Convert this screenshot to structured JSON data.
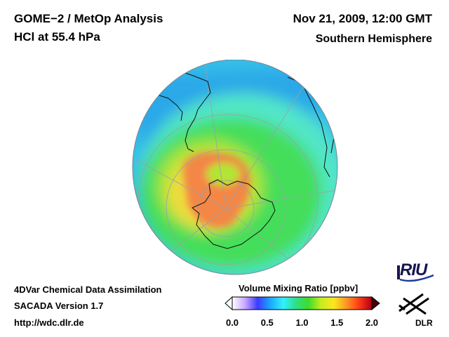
{
  "header": {
    "title": "GOME−2 / MetOp Analysis",
    "quantity": "HCl at 55.4 hPa",
    "datetime": "Nov 21, 2009, 12:00 GMT",
    "region": "Southern Hemisphere"
  },
  "footer": {
    "line1": "4DVar Chemical Data Assimilation",
    "line2": "SACADA Version 1.7",
    "line3": "http://wdc.dlr.de"
  },
  "colorbar": {
    "title": "Volume Mixing Ratio [ppbv]",
    "ticks": [
      "0.0",
      "0.5",
      "1.0",
      "1.5",
      "2.0"
    ],
    "range": [
      0.0,
      2.0
    ],
    "colors": [
      "#ffffff",
      "#c8a8ff",
      "#3a3cff",
      "#1aa8ff",
      "#33f0ff",
      "#2ee08a",
      "#3ddc2a",
      "#c8ec20",
      "#f8e81e",
      "#ff9624",
      "#ff3a18",
      "#b00010"
    ]
  },
  "logos": {
    "riu": "RIU",
    "dlr": "DLR"
  },
  "map": {
    "projection": "orthographic, centered on the South Pole",
    "colors": {
      "background": "#35bfe8",
      "midlat_blue": "#2ba8e8",
      "band_cyan": "#52e6c8",
      "green": "#45de5a",
      "yellow_green": "#b4e436",
      "yellow": "#f0dc3c",
      "orange_red": "#f47848",
      "coast": "#111111",
      "grid": "#9aa0a8"
    }
  }
}
